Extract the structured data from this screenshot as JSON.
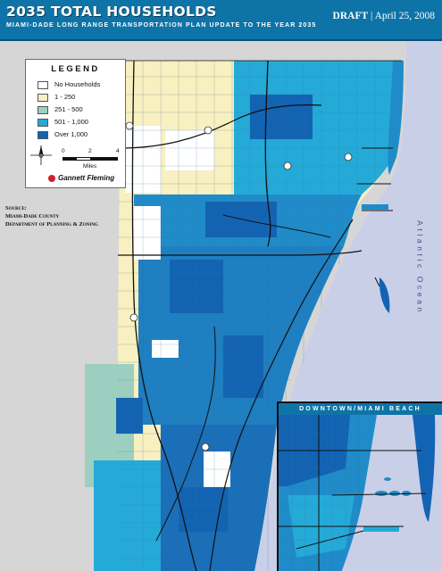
{
  "header": {
    "title": "2035 TOTAL HOUSEHOLDS",
    "subtitle": "MIAMI-DADE LONG RANGE TRANSPORTATION PLAN UPDATE TO THE YEAR 2035",
    "draft_label": "DRAFT",
    "draft_separator": "|",
    "draft_date": "April 25, 2008"
  },
  "legend": {
    "title": "LEGEND",
    "items": [
      {
        "label": "No Households",
        "color": "#ffffff"
      },
      {
        "label": "1 - 250",
        "color": "#f8f0c0"
      },
      {
        "label": "251 - 500",
        "color": "#9ccfbf"
      },
      {
        "label": "501 - 1,000",
        "color": "#25aad8"
      },
      {
        "label": "Over 1,000",
        "color": "#1363b3"
      }
    ],
    "scale": {
      "ticks": [
        "0",
        "2",
        "4"
      ],
      "unit": "Miles"
    },
    "logo": "Gannett Fleming"
  },
  "source": {
    "heading": "Source:",
    "lines": [
      "Miami-Dade County",
      "Department of Planning & Zoning"
    ]
  },
  "ocean_label": "Atlantic Ocean",
  "inset": {
    "title": "DOWNTOWN/MIAMI BEACH"
  },
  "colors": {
    "header": "#0e74a8",
    "ocean": "#c9cfe7",
    "everglades": "#d6d6d6",
    "roads": "#111111"
  }
}
